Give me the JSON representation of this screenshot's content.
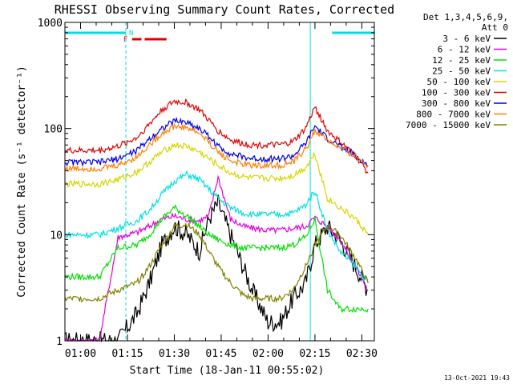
{
  "chart_data": {
    "type": "line",
    "title": "RHESSI Observing Summary Count Rates, Corrected",
    "xlabel": "Start Time (18-Jan-11 00:55:02)",
    "ylabel": "Corrected Count Rate (s⁻¹ detector⁻¹)",
    "yscale": "log",
    "ylim": [
      1,
      1000
    ],
    "xlim_minutes": [
      55,
      154
    ],
    "x_ticks": [
      {
        "t": 60,
        "label": "01:00"
      },
      {
        "t": 75,
        "label": "01:15"
      },
      {
        "t": 90,
        "label": "01:30"
      },
      {
        "t": 105,
        "label": "01:45"
      },
      {
        "t": 120,
        "label": "02:00"
      },
      {
        "t": 135,
        "label": "02:15"
      },
      {
        "t": 150,
        "label": "02:30"
      }
    ],
    "y_ticks": [
      {
        "v": 1,
        "label": "1"
      },
      {
        "v": 10,
        "label": "10"
      },
      {
        "v": 100,
        "label": "100"
      },
      {
        "v": 1000,
        "label": "1000"
      }
    ],
    "legend_header": [
      "Det 1,3,4,5,6,9,",
      "Att 0"
    ],
    "legend_position": "right",
    "series": [
      {
        "name": "3 - 6 keV",
        "color": "#000000",
        "x": [
          55,
          66,
          72,
          78,
          82,
          86,
          90,
          94,
          98,
          101,
          104,
          108,
          112,
          115,
          120,
          124,
          128,
          132,
          135,
          139,
          143,
          148,
          152
        ],
        "y": [
          1.0,
          1.0,
          1.0,
          1.8,
          3.5,
          8.0,
          12.0,
          10.0,
          7.0,
          14.0,
          20.0,
          10.0,
          5.0,
          3.0,
          1.5,
          1.5,
          2.5,
          3.5,
          8.0,
          12.0,
          9.0,
          5.0,
          3.0
        ]
      },
      {
        "name": "6 - 12 keV",
        "color": "#e000e0",
        "x": [
          55,
          66,
          72,
          78,
          82,
          86,
          90,
          94,
          98,
          101,
          104,
          108,
          112,
          115,
          120,
          124,
          128,
          132,
          135,
          139,
          143,
          148,
          152
        ],
        "y": [
          1.0,
          1.0,
          9.5,
          10.5,
          12.0,
          14.0,
          15.0,
          14.0,
          13.5,
          15.0,
          35.0,
          14.0,
          12.0,
          11.5,
          11.0,
          11.0,
          11.5,
          12.0,
          14.5,
          12.0,
          9.0,
          5.0,
          3.0
        ]
      },
      {
        "name": "12 - 25 keV",
        "color": "#00e000",
        "x": [
          55,
          66,
          72,
          78,
          82,
          86,
          90,
          94,
          98,
          101,
          104,
          108,
          112,
          115,
          120,
          124,
          128,
          132,
          135,
          139,
          143,
          148,
          152
        ],
        "y": [
          4.0,
          4.0,
          7.5,
          8.0,
          10.0,
          14.0,
          18.0,
          15.0,
          12.0,
          10.0,
          9.0,
          8.0,
          7.5,
          7.5,
          7.5,
          7.5,
          8.0,
          9.5,
          14.0,
          3.0,
          2.0,
          2.0,
          2.0
        ]
      },
      {
        "name": "25 - 50 keV",
        "color": "#00e0e0",
        "x": [
          55,
          66,
          72,
          78,
          82,
          86,
          90,
          94,
          98,
          101,
          104,
          108,
          112,
          115,
          120,
          124,
          128,
          132,
          135,
          139,
          143,
          148,
          152
        ],
        "y": [
          10.0,
          10.0,
          11.5,
          13.5,
          17.0,
          24.0,
          32.0,
          37.0,
          33.0,
          27.0,
          22.0,
          18.0,
          16.0,
          15.5,
          15.5,
          15.5,
          16.0,
          19.0,
          26.0,
          11.0,
          7.0,
          5.0,
          3.5
        ]
      },
      {
        "name": "50 - 100 keV",
        "color": "#d6d600",
        "x": [
          55,
          66,
          72,
          78,
          82,
          86,
          90,
          94,
          98,
          101,
          104,
          108,
          112,
          115,
          120,
          124,
          128,
          132,
          135,
          139,
          143,
          148,
          152
        ],
        "y": [
          30.0,
          30.0,
          33.0,
          39.0,
          48.0,
          60.0,
          70.0,
          68.0,
          60.0,
          52.0,
          45.0,
          38.0,
          35.0,
          34.0,
          34.0,
          34.0,
          36.0,
          43.0,
          58.0,
          22.0,
          18.0,
          14.0,
          10.0
        ]
      },
      {
        "name": "100 - 300 keV",
        "color": "#e00000",
        "x": [
          55,
          66,
          72,
          78,
          82,
          86,
          90,
          94,
          98,
          101,
          104,
          108,
          112,
          115,
          120,
          124,
          128,
          132,
          135,
          139,
          143,
          148,
          152
        ],
        "y": [
          62.0,
          62.0,
          68.0,
          82.0,
          110.0,
          150.0,
          180.0,
          175.0,
          150.0,
          120.0,
          95.0,
          78.0,
          72.0,
          70.0,
          70.0,
          70.0,
          75.0,
          100.0,
          160.0,
          95.0,
          75.0,
          55.0,
          38.0
        ]
      },
      {
        "name": "300 - 800 keV",
        "color": "#0000e0",
        "x": [
          55,
          66,
          72,
          78,
          82,
          86,
          90,
          94,
          98,
          101,
          104,
          108,
          112,
          115,
          120,
          124,
          128,
          132,
          135,
          139,
          143,
          148,
          152
        ],
        "y": [
          48.0,
          48.0,
          52.0,
          62.0,
          80.0,
          100.0,
          118.0,
          115.0,
          100.0,
          85.0,
          68.0,
          58.0,
          54.0,
          52.0,
          52.0,
          52.0,
          55.0,
          72.0,
          105.0,
          80.0,
          68.0,
          55.0,
          45.0
        ]
      },
      {
        "name": "800 - 7000 keV",
        "color": "#ff8000",
        "x": [
          55,
          66,
          72,
          78,
          82,
          86,
          90,
          94,
          98,
          101,
          104,
          108,
          112,
          115,
          120,
          124,
          128,
          132,
          135,
          139,
          143,
          148,
          152
        ],
        "y": [
          42.0,
          42.0,
          45.0,
          54.0,
          70.0,
          90.0,
          105.0,
          102.0,
          90.0,
          75.0,
          60.0,
          50.0,
          46.0,
          45.0,
          45.0,
          45.0,
          48.0,
          64.0,
          95.0,
          78.0,
          65.0,
          55.0,
          45.0
        ]
      },
      {
        "name": "7000 - 15000 keV",
        "color": "#808000",
        "x": [
          55,
          66,
          72,
          78,
          82,
          86,
          90,
          94,
          98,
          101,
          104,
          108,
          112,
          115,
          120,
          124,
          128,
          132,
          135,
          139,
          143,
          148,
          152
        ],
        "y": [
          2.5,
          2.5,
          3.0,
          3.5,
          5.0,
          8.0,
          12.0,
          12.5,
          10.0,
          7.0,
          5.0,
          3.5,
          2.7,
          2.5,
          2.5,
          2.5,
          3.0,
          5.0,
          8.0,
          12.0,
          10.0,
          6.0,
          3.5
        ]
      }
    ],
    "annotations": {
      "night_label": "N",
      "flare_label": "F",
      "night_bars": [
        [
          55,
          74.5
        ],
        [
          140.5,
          154
        ]
      ],
      "flare_bars": [
        [
          76.5,
          79.5
        ],
        [
          80.5,
          87.5
        ]
      ],
      "saa_bounds": [
        55,
        74.5,
        133.5,
        154
      ]
    },
    "grid": false,
    "background": "#ffffff",
    "axis_color": "#000000"
  },
  "footer": {
    "timestamp": "13-Oct-2021 19:43"
  }
}
